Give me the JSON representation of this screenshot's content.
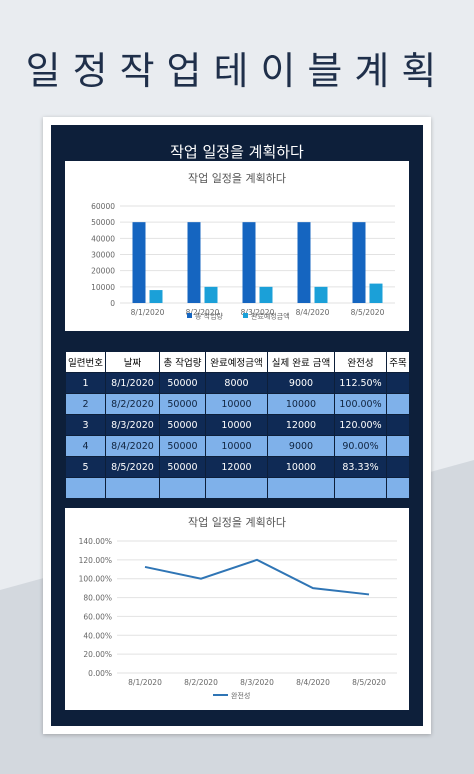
{
  "page": {
    "title": "일정작업테이블계획"
  },
  "sheet": {
    "title": "작업 일정을 계획하다"
  },
  "bar_chart": {
    "title": "작업 일정을 계획하다",
    "legend": [
      "총 작업량",
      "완료예정금액"
    ]
  },
  "line_chart": {
    "title": "작업 일정을 계획하다",
    "legend": [
      "완전성"
    ]
  },
  "table": {
    "headers": [
      "일련번호",
      "날짜",
      "총 작업량",
      "완료예정금액",
      "실제 완료 금액",
      "완전성",
      "주목"
    ],
    "rows": [
      [
        "1",
        "8/1/2020",
        "50000",
        "8000",
        "9000",
        "112.50%",
        ""
      ],
      [
        "2",
        "8/2/2020",
        "50000",
        "10000",
        "10000",
        "100.00%",
        ""
      ],
      [
        "3",
        "8/3/2020",
        "50000",
        "10000",
        "12000",
        "120.00%",
        ""
      ],
      [
        "4",
        "8/4/2020",
        "50000",
        "10000",
        "9000",
        "90.00%",
        ""
      ],
      [
        "5",
        "8/5/2020",
        "50000",
        "12000",
        "10000",
        "83.33%",
        ""
      ]
    ]
  },
  "chart_data": [
    {
      "type": "bar",
      "title": "작업 일정을 계획하다",
      "categories": [
        "8/1/2020",
        "8/2/2020",
        "8/3/2020",
        "8/4/2020",
        "8/5/2020"
      ],
      "series": [
        {
          "name": "총 작업량",
          "values": [
            50000,
            50000,
            50000,
            50000,
            50000
          ],
          "color": "#1565c0"
        },
        {
          "name": "완료예정금액",
          "values": [
            8000,
            10000,
            10000,
            10000,
            12000
          ],
          "color": "#1ba0d8"
        }
      ],
      "ylim": [
        0,
        60000
      ],
      "yticks": [
        "60000",
        "50000",
        "40000",
        "30000",
        "20000",
        "10000",
        "0"
      ],
      "grid": true,
      "legend": "bottom"
    },
    {
      "type": "line",
      "title": "작업 일정을 계획하다",
      "categories": [
        "8/1/2020",
        "8/2/2020",
        "8/3/2020",
        "8/4/2020",
        "8/5/2020"
      ],
      "series": [
        {
          "name": "완전성",
          "values": [
            112.5,
            100,
            120,
            90,
            83.33
          ],
          "color": "#2f75b5"
        }
      ],
      "ylim": [
        0,
        140
      ],
      "yticks": [
        "140.00%",
        "120.00%",
        "100.00%",
        "80.00%",
        "60.00%",
        "40.00%",
        "20.00%",
        "0.00%"
      ],
      "grid": true,
      "legend": "bottom"
    }
  ]
}
